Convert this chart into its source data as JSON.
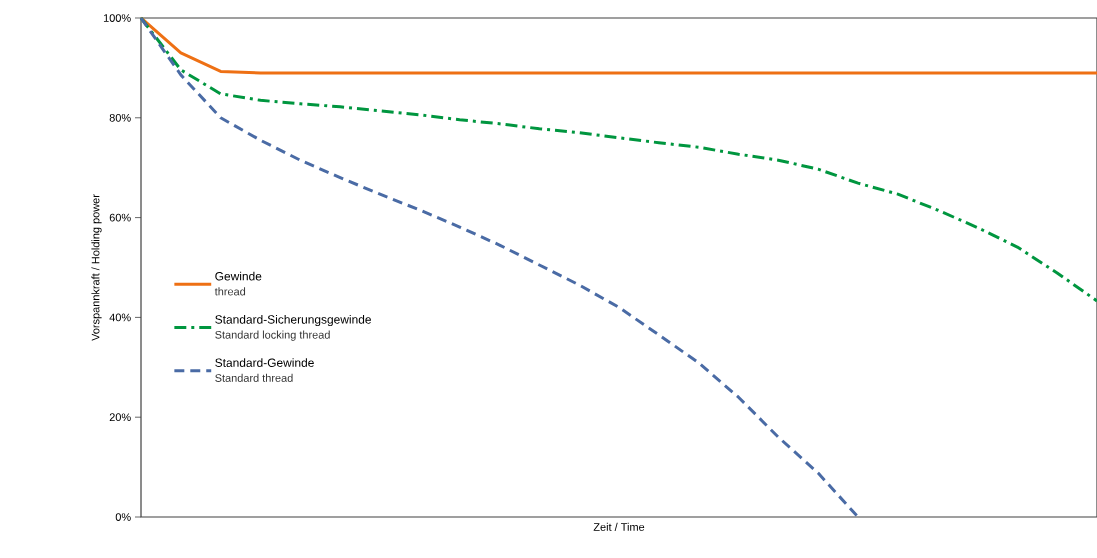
{
  "chart_data": {
    "type": "line",
    "xlabel": "Zeit / Time",
    "ylabel": "Vorspannkraft / Holding power",
    "categories": [
      null,
      null,
      null,
      null,
      null,
      null,
      null,
      null,
      null,
      null,
      null,
      null,
      null,
      null,
      null,
      null,
      null,
      null,
      null,
      null,
      null,
      null,
      null,
      null,
      null
    ],
    "ylim": [
      0,
      100
    ],
    "yticks": [
      {
        "value": 0,
        "label": "0%"
      },
      {
        "value": 20,
        "label": "20%"
      },
      {
        "value": 40,
        "label": "40%"
      },
      {
        "value": 60,
        "label": "60%"
      },
      {
        "value": 80,
        "label": "80%"
      },
      {
        "value": 100,
        "label": "100%"
      }
    ],
    "series": [
      {
        "name": "Gewinde",
        "color": "#ee7014",
        "line_style": "solid",
        "values": [
          100,
          93,
          89.3,
          89,
          89,
          89,
          89,
          89,
          89,
          89,
          89,
          89,
          89,
          89,
          89,
          89,
          89,
          89,
          89,
          89,
          89,
          89,
          89,
          89,
          89
        ]
      },
      {
        "name": "Standard-Sicherungsgewinde",
        "color": "#00963f",
        "line_style": "dashdot",
        "values": [
          100,
          89.6,
          84.8,
          83.5,
          82.8,
          82.2,
          81.4,
          80.6,
          79.6,
          78.8,
          77.8,
          77,
          76,
          75,
          74.1,
          72.7,
          71.5,
          69.7,
          66.9,
          64.7,
          61.5,
          58,
          54.1,
          48.9,
          43.3
        ]
      },
      {
        "name": "Standard-Gewinde",
        "color": "#4a6ba5",
        "line_style": "dashed",
        "values": [
          100,
          88.6,
          80,
          75.5,
          71.5,
          68,
          64.7,
          61.5,
          58.1,
          54.5,
          50.5,
          46.5,
          42,
          36.5,
          30.9,
          24,
          16,
          8.8,
          0,
          null,
          null,
          null,
          null,
          null,
          null
        ]
      }
    ],
    "annotations": [
      "thread",
      "Standard locking thread",
      "Standard thread"
    ],
    "legend": "left",
    "grid": false,
    "marker": "none"
  }
}
